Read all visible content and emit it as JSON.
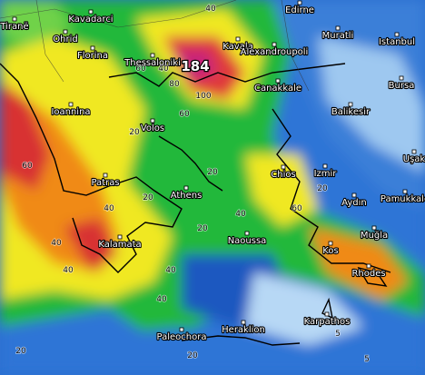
{
  "cities": [
    "Kavadarci",
    "Edirne",
    "Tiranë",
    "Ohrid",
    "Florina",
    "Thessaloniki",
    "Kavala",
    "Alexandroupoli",
    "Muratli",
    "Istanbul",
    "Bursa",
    "Canakkale",
    "Balikesir",
    "Ioannina",
    "Volos",
    "Uşak",
    "Chios",
    "Izmir",
    "Patras",
    "Athens",
    "Aydın",
    "Pamukkale",
    "Kalamata",
    "Naoussa",
    "Muğla",
    "Kos",
    "Rhodes",
    "Karpathos",
    "Heraklion",
    "Paleochora"
  ],
  "peak_label": "184",
  "contour_labels": [
    "40",
    "60",
    "80",
    "100",
    "60",
    "40",
    "20",
    "60",
    "40",
    "20",
    "20",
    "40",
    "60",
    "40",
    "20",
    "40",
    "40",
    "20",
    "5",
    "5",
    "40",
    "20",
    "20"
  ]
}
